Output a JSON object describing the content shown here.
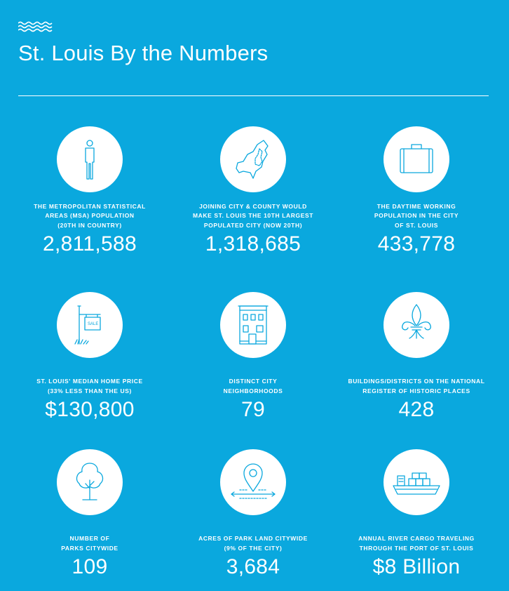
{
  "header": {
    "title": "St. Louis By the Numbers",
    "decor_icon": "waves-icon"
  },
  "colors": {
    "background": "#0aa8de",
    "foreground": "#ffffff"
  },
  "stats": [
    {
      "icon": "person-icon",
      "label": "The metropolitan statistical\nareas (MSA) population\n(20th in country)",
      "value": "2,811,588"
    },
    {
      "icon": "map-outline-icon",
      "label": "Joining city & county would\nmake St. Louis the 10th largest\npopulated city (now 20th)",
      "value": "1,318,685"
    },
    {
      "icon": "briefcase-icon",
      "label": "The daytime working\npopulation in the city\nof St. Louis",
      "value": "433,778"
    },
    {
      "icon": "for-sale-sign-icon",
      "label": "St. Louis' median home price\n(33% less than the US)",
      "value": "$130,800"
    },
    {
      "icon": "building-icon",
      "label": "Distinct city\nneighborhoods",
      "value": "79"
    },
    {
      "icon": "fleur-de-lis-icon",
      "label": "Buildings/districts on the national\nregister of historic places",
      "value": "428"
    },
    {
      "icon": "tree-icon",
      "label": "Number of\nparks citywide",
      "value": "109"
    },
    {
      "icon": "location-pin-icon",
      "label": "Acres of park land citywide\n(9% of the city)",
      "value": "3,684"
    },
    {
      "icon": "cargo-ship-icon",
      "label": "Annual river cargo traveling\nthrough the port of St. Louis",
      "value": "$8 Billion"
    }
  ],
  "sale_sign_text": "SALE"
}
